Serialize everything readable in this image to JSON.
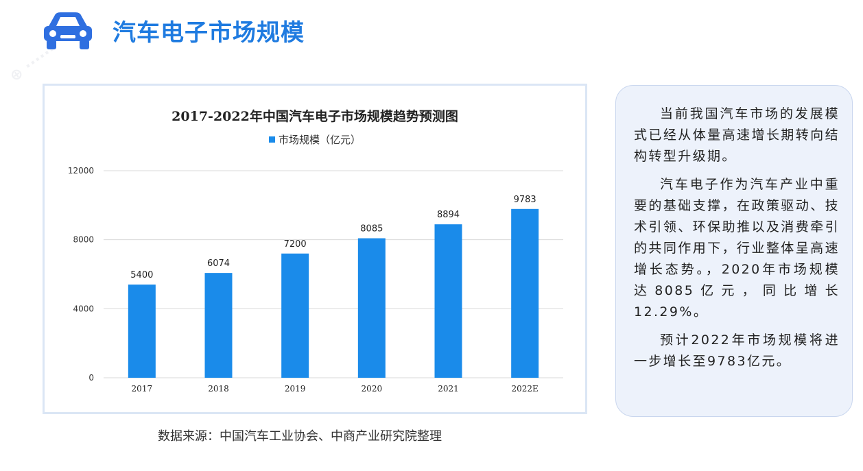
{
  "header": {
    "title": "汽车电子市场规模",
    "icon": "car-icon",
    "accent_color": "#1f7be0"
  },
  "chart_data": {
    "type": "bar",
    "title": "2017-2022年中国汽车电子市场规模趋势预测图",
    "legend": "top",
    "categories": [
      "2017",
      "2018",
      "2019",
      "2020",
      "2021",
      "2022E"
    ],
    "series": [
      {
        "name": "市场规模（亿元）",
        "values": [
          5400,
          6074,
          7200,
          8085,
          8894,
          9783
        ],
        "color": "#1a8bea"
      }
    ],
    "ylim": [
      0,
      12000
    ],
    "yticks": [
      0,
      4000,
      8000,
      12000
    ],
    "grid": true,
    "data_labels": [
      "5400",
      "6074",
      "7200",
      "8085",
      "8894",
      "9783"
    ],
    "ytick_labels": [
      "0",
      "4000",
      "8000",
      "12000"
    ]
  },
  "source_note": "数据来源：中国汽车工业协会、中商产业研究院整理",
  "text_panel": {
    "paragraphs": [
      "当前我国汽车市场的发展模式已经从体量高速增长期转向结构转型升级期。",
      "汽车电子作为汽车产业中重要的基础支撑，在政策驱动、技术引领、环保助推以及消费牵引的共同作用下，行业整体呈高速增长态势。，2020年市场规模达8085亿元，同比增长12.29%。",
      "预计2022年市场规模将进一步增长至9783亿元。"
    ]
  }
}
